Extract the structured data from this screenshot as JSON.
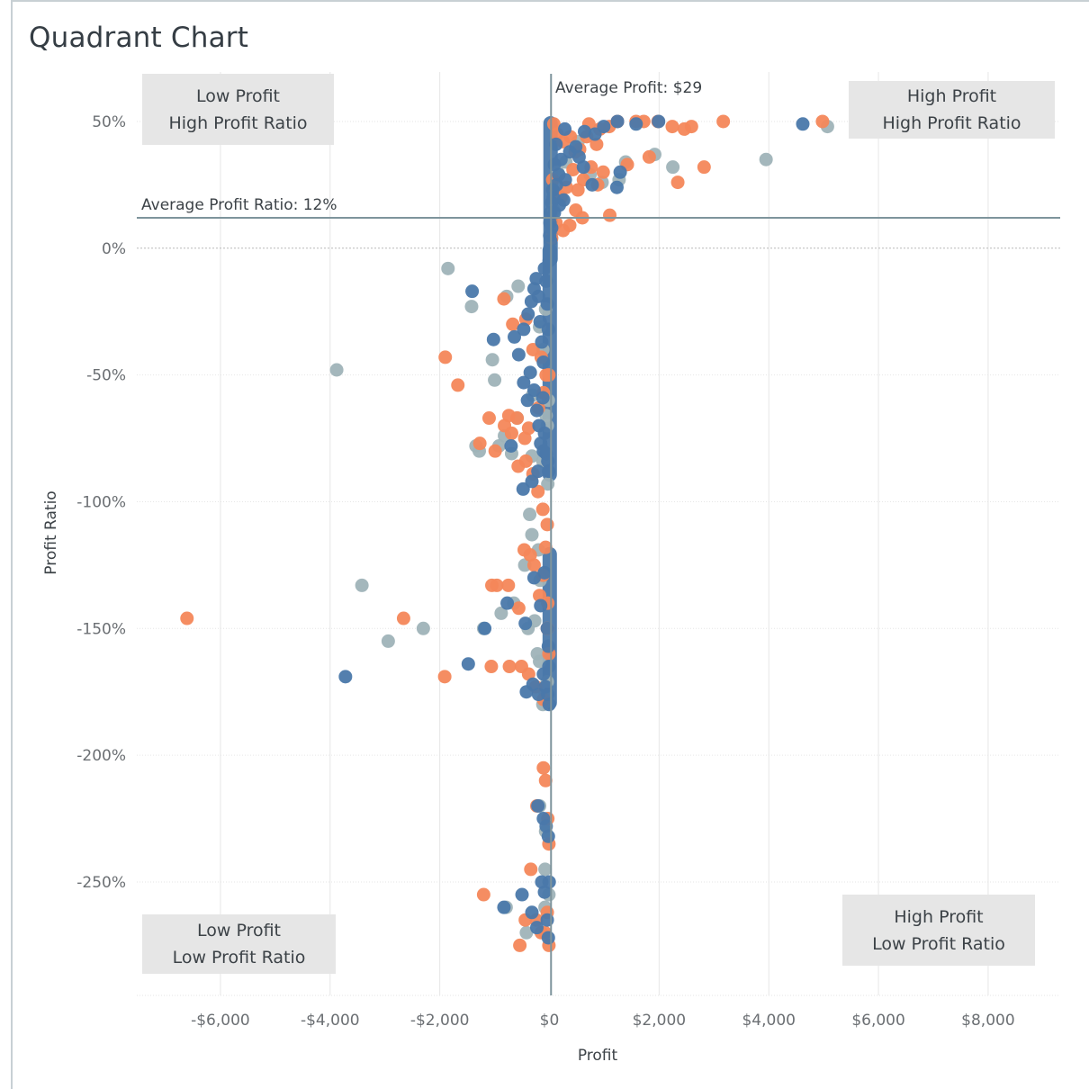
{
  "title": "Quadrant Chart",
  "colors": {
    "series_a": "#9fb3b8",
    "series_b": "#f4875a",
    "series_c": "#4a78aa",
    "ref_line": "#7e949c",
    "grid": "#e6e6e6",
    "quadrant_bg": "#e6e6e6"
  },
  "quadrants": {
    "top_left": {
      "line1": "Low Profit",
      "line2": "High Profit Ratio"
    },
    "top_right": {
      "line1": "High Profit",
      "line2": "High Profit Ratio"
    },
    "bottom_left": {
      "line1": "Low Profit",
      "line2": "Low Profit Ratio"
    },
    "bottom_right": {
      "line1": "High Profit",
      "line2": "Low Profit Ratio"
    }
  },
  "reference_lines": {
    "avg_profit": {
      "label": "Average Profit: $29",
      "value": 29
    },
    "avg_profit_ratio": {
      "label": "Average Profit Ratio: 12%",
      "value": 12
    }
  },
  "chart_data": {
    "type": "scatter",
    "title": "Quadrant Chart",
    "xlabel": "Profit",
    "ylabel": "Profit Ratio",
    "xlim": [
      -7500,
      9300
    ],
    "ylim": [
      -294,
      60
    ],
    "grid": true,
    "x_ticks": [
      {
        "value": -6000,
        "label": "-$6,000"
      },
      {
        "value": -4000,
        "label": "-$4,000"
      },
      {
        "value": -2000,
        "label": "-$2,000"
      },
      {
        "value": 0,
        "label": "$0"
      },
      {
        "value": 2000,
        "label": "$2,000"
      },
      {
        "value": 4000,
        "label": "$4,000"
      },
      {
        "value": 6000,
        "label": "$6,000"
      },
      {
        "value": 8000,
        "label": "$8,000"
      }
    ],
    "y_ticks": [
      {
        "value": 50,
        "label": "50%"
      },
      {
        "value": 0,
        "label": "0%"
      },
      {
        "value": -50,
        "label": "-50%"
      },
      {
        "value": -100,
        "label": "-100%"
      },
      {
        "value": -150,
        "label": "-150%"
      },
      {
        "value": -200,
        "label": "-200%"
      },
      {
        "value": -250,
        "label": "-250%"
      }
    ],
    "series": [
      {
        "color": "#9fb3b8",
        "points": [
          [
            5070,
            48
          ],
          [
            3950,
            35
          ],
          [
            2250,
            32
          ],
          [
            1920,
            37
          ],
          [
            1390,
            34
          ],
          [
            1270,
            27
          ],
          [
            960,
            26
          ],
          [
            740,
            29
          ],
          [
            520,
            42
          ],
          [
            300,
            34
          ],
          [
            150,
            30
          ],
          [
            80,
            15
          ],
          [
            -1850,
            -8
          ],
          [
            -1420,
            -23
          ],
          [
            -780,
            -19
          ],
          [
            -570,
            -15
          ],
          [
            -1040,
            -44
          ],
          [
            -1000,
            -52
          ],
          [
            -820,
            -74
          ],
          [
            -590,
            -67
          ],
          [
            -310,
            -58
          ],
          [
            -180,
            -31
          ],
          [
            -120,
            -40
          ],
          [
            -70,
            -24
          ],
          [
            -40,
            -70
          ],
          [
            -20,
            -60
          ],
          [
            -3880,
            -48
          ],
          [
            -1340,
            -78
          ],
          [
            -1280,
            -80
          ],
          [
            -920,
            -78
          ],
          [
            -690,
            -81
          ],
          [
            -320,
            -82
          ],
          [
            -120,
            -84
          ],
          [
            -60,
            -66
          ],
          [
            -30,
            -93
          ],
          [
            -360,
            -105
          ],
          [
            -320,
            -113
          ],
          [
            -200,
            -119
          ],
          [
            -450,
            -125
          ],
          [
            -170,
            -131
          ],
          [
            -880,
            -144
          ],
          [
            -650,
            -140
          ],
          [
            -270,
            -147
          ],
          [
            -3420,
            -133
          ],
          [
            -2940,
            -155
          ],
          [
            -2300,
            -150
          ],
          [
            -1200,
            -150
          ],
          [
            -390,
            -150
          ],
          [
            -220,
            -160
          ],
          [
            -180,
            -163
          ],
          [
            -80,
            -175
          ],
          [
            -120,
            -180
          ],
          [
            -40,
            -171
          ],
          [
            -180,
            -220
          ],
          [
            -70,
            -230
          ],
          [
            -80,
            -260
          ],
          [
            -420,
            -270
          ],
          [
            -790,
            -260
          ],
          [
            -80,
            -245
          ],
          [
            -10,
            -255
          ]
        ]
      },
      {
        "color": "#f4875a",
        "points": [
          [
            4980,
            50
          ],
          [
            3170,
            50
          ],
          [
            2590,
            48
          ],
          [
            2460,
            47
          ],
          [
            2240,
            48
          ],
          [
            1980,
            50
          ],
          [
            1720,
            50
          ],
          [
            1580,
            50
          ],
          [
            1240,
            50
          ],
          [
            1090,
            48
          ],
          [
            920,
            47
          ],
          [
            860,
            41
          ],
          [
            720,
            49
          ],
          [
            680,
            44
          ],
          [
            550,
            39
          ],
          [
            470,
            38
          ],
          [
            380,
            44
          ],
          [
            250,
            42
          ],
          [
            140,
            45
          ],
          [
            80,
            49
          ],
          [
            2820,
            32
          ],
          [
            2340,
            26
          ],
          [
            1820,
            36
          ],
          [
            1420,
            33
          ],
          [
            980,
            30
          ],
          [
            880,
            25
          ],
          [
            760,
            32
          ],
          [
            620,
            27
          ],
          [
            520,
            23
          ],
          [
            430,
            31
          ],
          [
            310,
            24
          ],
          [
            210,
            20
          ],
          [
            110,
            22
          ],
          [
            60,
            27
          ],
          [
            1100,
            13
          ],
          [
            600,
            12
          ],
          [
            480,
            15
          ],
          [
            370,
            9
          ],
          [
            250,
            7
          ],
          [
            120,
            10
          ],
          [
            40,
            4
          ],
          [
            -830,
            -20
          ],
          [
            -670,
            -30
          ],
          [
            -430,
            -28
          ],
          [
            -300,
            -40
          ],
          [
            -150,
            -43
          ],
          [
            -60,
            -50
          ],
          [
            -1900,
            -43
          ],
          [
            -1670,
            -54
          ],
          [
            -1100,
            -67
          ],
          [
            -820,
            -70
          ],
          [
            -740,
            -66
          ],
          [
            -690,
            -73
          ],
          [
            -590,
            -67
          ],
          [
            -450,
            -75
          ],
          [
            -380,
            -71
          ],
          [
            -200,
            -63
          ],
          [
            -110,
            -57
          ],
          [
            -10,
            -50
          ],
          [
            -1270,
            -77
          ],
          [
            -990,
            -80
          ],
          [
            -570,
            -86
          ],
          [
            -430,
            -84
          ],
          [
            -300,
            -89
          ],
          [
            -210,
            -96
          ],
          [
            -120,
            -103
          ],
          [
            -70,
            -118
          ],
          [
            -40,
            -109
          ],
          [
            -6610,
            -146
          ],
          [
            -2660,
            -146
          ],
          [
            -1910,
            -169
          ],
          [
            -1050,
            -133
          ],
          [
            -960,
            -133
          ],
          [
            -750,
            -133
          ],
          [
            -560,
            -142
          ],
          [
            -460,
            -119
          ],
          [
            -350,
            -121
          ],
          [
            -280,
            -125
          ],
          [
            -180,
            -137
          ],
          [
            -120,
            -129
          ],
          [
            -30,
            -140
          ],
          [
            -1060,
            -165
          ],
          [
            -730,
            -165
          ],
          [
            -510,
            -165
          ],
          [
            -380,
            -168
          ],
          [
            -250,
            -173
          ],
          [
            -110,
            -178
          ],
          [
            -40,
            -150
          ],
          [
            -10,
            -160
          ],
          [
            -230,
            -220
          ],
          [
            -110,
            -205
          ],
          [
            -70,
            -210
          ],
          [
            -30,
            -225
          ],
          [
            -10,
            -235
          ],
          [
            -1200,
            -255
          ],
          [
            -540,
            -275
          ],
          [
            -440,
            -265
          ],
          [
            -340,
            -245
          ],
          [
            -240,
            -265
          ],
          [
            -150,
            -270
          ],
          [
            -80,
            -270
          ],
          [
            -40,
            -262
          ],
          [
            -10,
            -275
          ]
        ]
      },
      {
        "color": "#4a78aa",
        "points": [
          [
            4620,
            49
          ],
          [
            1990,
            50
          ],
          [
            1580,
            49
          ],
          [
            1240,
            50
          ],
          [
            990,
            48
          ],
          [
            830,
            45
          ],
          [
            640,
            46
          ],
          [
            480,
            40
          ],
          [
            370,
            38
          ],
          [
            280,
            47
          ],
          [
            210,
            35
          ],
          [
            170,
            29
          ],
          [
            120,
            41
          ],
          [
            90,
            33
          ],
          [
            60,
            23
          ],
          [
            40,
            18
          ],
          [
            20,
            14
          ],
          [
            10,
            10
          ],
          [
            5,
            5
          ],
          [
            1230,
            24
          ],
          [
            1290,
            30
          ],
          [
            780,
            25
          ],
          [
            620,
            32
          ],
          [
            540,
            36
          ],
          [
            290,
            27
          ],
          [
            260,
            19
          ],
          [
            180,
            17
          ],
          [
            130,
            25
          ],
          [
            90,
            14
          ],
          [
            70,
            20
          ],
          [
            40,
            8
          ],
          [
            20,
            3
          ],
          [
            -1410,
            -17
          ],
          [
            -640,
            -35
          ],
          [
            -470,
            -32
          ],
          [
            -390,
            -26
          ],
          [
            -330,
            -21
          ],
          [
            -280,
            -16
          ],
          [
            -240,
            -12
          ],
          [
            -200,
            -19
          ],
          [
            -170,
            -29
          ],
          [
            -140,
            -37
          ],
          [
            -110,
            -45
          ],
          [
            -90,
            -8
          ],
          [
            -60,
            -13
          ],
          [
            -40,
            -22
          ],
          [
            -20,
            -32
          ],
          [
            -5,
            -5
          ],
          [
            -1020,
            -36
          ],
          [
            -560,
            -42
          ],
          [
            -470,
            -53
          ],
          [
            -400,
            -60
          ],
          [
            -350,
            -49
          ],
          [
            -280,
            -56
          ],
          [
            -230,
            -64
          ],
          [
            -190,
            -70
          ],
          [
            -160,
            -77
          ],
          [
            -120,
            -59
          ],
          [
            -90,
            -73
          ],
          [
            -60,
            -81
          ],
          [
            -30,
            -84
          ],
          [
            -15,
            -88
          ],
          [
            -700,
            -78
          ],
          [
            -480,
            -95
          ],
          [
            -320,
            -92
          ],
          [
            -210,
            -88
          ],
          [
            -110,
            -80
          ],
          [
            -3720,
            -169
          ],
          [
            -1480,
            -164
          ],
          [
            -1180,
            -150
          ],
          [
            -770,
            -140
          ],
          [
            -440,
            -148
          ],
          [
            -280,
            -130
          ],
          [
            -160,
            -141
          ],
          [
            -90,
            -128
          ],
          [
            -40,
            -150
          ],
          [
            -20,
            -157
          ],
          [
            -10,
            -165
          ],
          [
            -420,
            -175
          ],
          [
            -300,
            -172
          ],
          [
            -200,
            -176
          ],
          [
            -110,
            -168
          ],
          [
            -70,
            -173
          ],
          [
            -30,
            -176
          ],
          [
            -5,
            -180
          ],
          [
            -210,
            -220
          ],
          [
            -110,
            -225
          ],
          [
            -60,
            -228
          ],
          [
            -20,
            -232
          ],
          [
            -830,
            -260
          ],
          [
            -500,
            -255
          ],
          [
            -320,
            -262
          ],
          [
            -230,
            -268
          ],
          [
            -140,
            -250
          ],
          [
            -90,
            -254
          ],
          [
            -40,
            -265
          ],
          [
            -20,
            -272
          ],
          [
            -5,
            -250
          ]
        ]
      }
    ],
    "column_bands": [
      {
        "x": 20,
        "y_from": 50,
        "y_to": -5,
        "color": "#4a78aa"
      },
      {
        "x": 5,
        "y_from": 0,
        "y_to": -90,
        "color": "#4a78aa"
      },
      {
        "x": 5,
        "y_from": -120,
        "y_to": -180,
        "color": "#4a78aa"
      }
    ]
  }
}
